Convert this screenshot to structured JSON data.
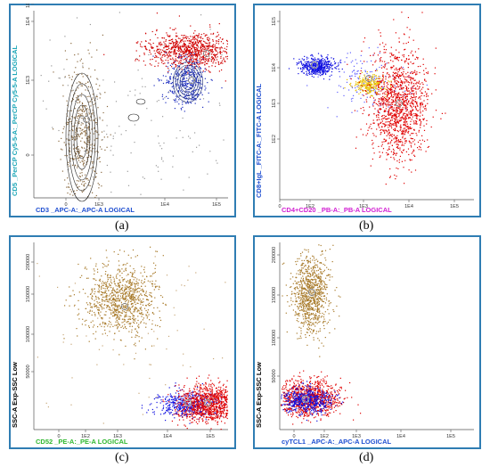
{
  "chart_data": [
    {
      "type": "scatter",
      "panel": "(a)",
      "xlabel": "CD3 _APC-A:_APC-A LOGICAL",
      "ylabel": "CD5 _PerCP Cy5-5-A:_PerCP Cy5-5-A LOGICAL",
      "xlabel_color": "#1f4fd1",
      "ylabel_color": "#1fa8b8",
      "x_ticks": [
        "0",
        "1E3",
        "1E4",
        "1E5"
      ],
      "y_ticks": [
        "0",
        "1E3",
        "1E4",
        "1E5"
      ],
      "series": [
        {
          "color": "#d00000",
          "center": [
            "1E4.7",
            "1E4.1"
          ]
        },
        {
          "color": "#2030c0",
          "center": [
            "1E4.6",
            "1E3.4"
          ]
        },
        {
          "color": "#8a6a40",
          "center": [
            "1E2.7",
            "1E2.3"
          ]
        }
      ]
    },
    {
      "type": "scatter",
      "panel": "(b)",
      "xlabel": "CD4+CD20 _PB-A:_PB-A LOGICAL",
      "ylabel": "CD8+IgL _FITC-A:_FITC-A LOGICAL",
      "xlabel_color": "#d21fd2",
      "ylabel_color": "#1f4fd1",
      "x_ticks": [
        "0",
        "1E2",
        "1E3",
        "1E4",
        "1E5"
      ],
      "y_ticks": [
        "1E2",
        "1E3",
        "1E4",
        "1E5"
      ],
      "series": [
        {
          "color": "#1010e0",
          "center": [
            "1E1.8",
            "1E3.8"
          ]
        },
        {
          "color": "#e8c000",
          "center": [
            "1E3",
            "1E3.3"
          ]
        },
        {
          "color": "#e00000",
          "center": [
            "1E3.6",
            "1E3"
          ]
        }
      ]
    },
    {
      "type": "scatter",
      "panel": "(c)",
      "xlabel": "CD52 _PE-A:_PE-A LOGICAL",
      "ylabel": "SSC-A Exp-SSC Low",
      "xlabel_color": "#2fb82f",
      "ylabel_color": "#000000",
      "x_ticks": [
        "0",
        "1E2",
        "1E3",
        "1E4",
        "1E5"
      ],
      "y_ticks": [
        "50000",
        "100000",
        "150000",
        "200000"
      ],
      "series": [
        {
          "color": "#a87a2a",
          "center": [
            "1E3",
            "135000"
          ]
        },
        {
          "color": "#1010e0",
          "center": [
            "1E4.4",
            "15000"
          ]
        },
        {
          "color": "#e00000",
          "center": [
            "1E5",
            "15000"
          ]
        }
      ]
    },
    {
      "type": "scatter",
      "panel": "(d)",
      "xlabel": "cyTCL1 _APC-A:_APC-A LOGICAL",
      "ylabel": "SSC-A Exp-SSC Low",
      "xlabel_color": "#1f4fd1",
      "ylabel_color": "#000000",
      "x_ticks": [
        "0",
        "1E2",
        "1E3",
        "1E4",
        "1E5"
      ],
      "y_ticks": [
        "50000",
        "100000",
        "150000",
        "200000"
      ],
      "series": [
        {
          "color": "#a87a2a",
          "center": [
            "1E2.2",
            "135000"
          ]
        },
        {
          "color": "#e00000",
          "center": [
            "1E2.2",
            "20000"
          ]
        },
        {
          "color": "#1010e0",
          "center": [
            "1E2.2",
            "18000"
          ]
        }
      ]
    }
  ]
}
